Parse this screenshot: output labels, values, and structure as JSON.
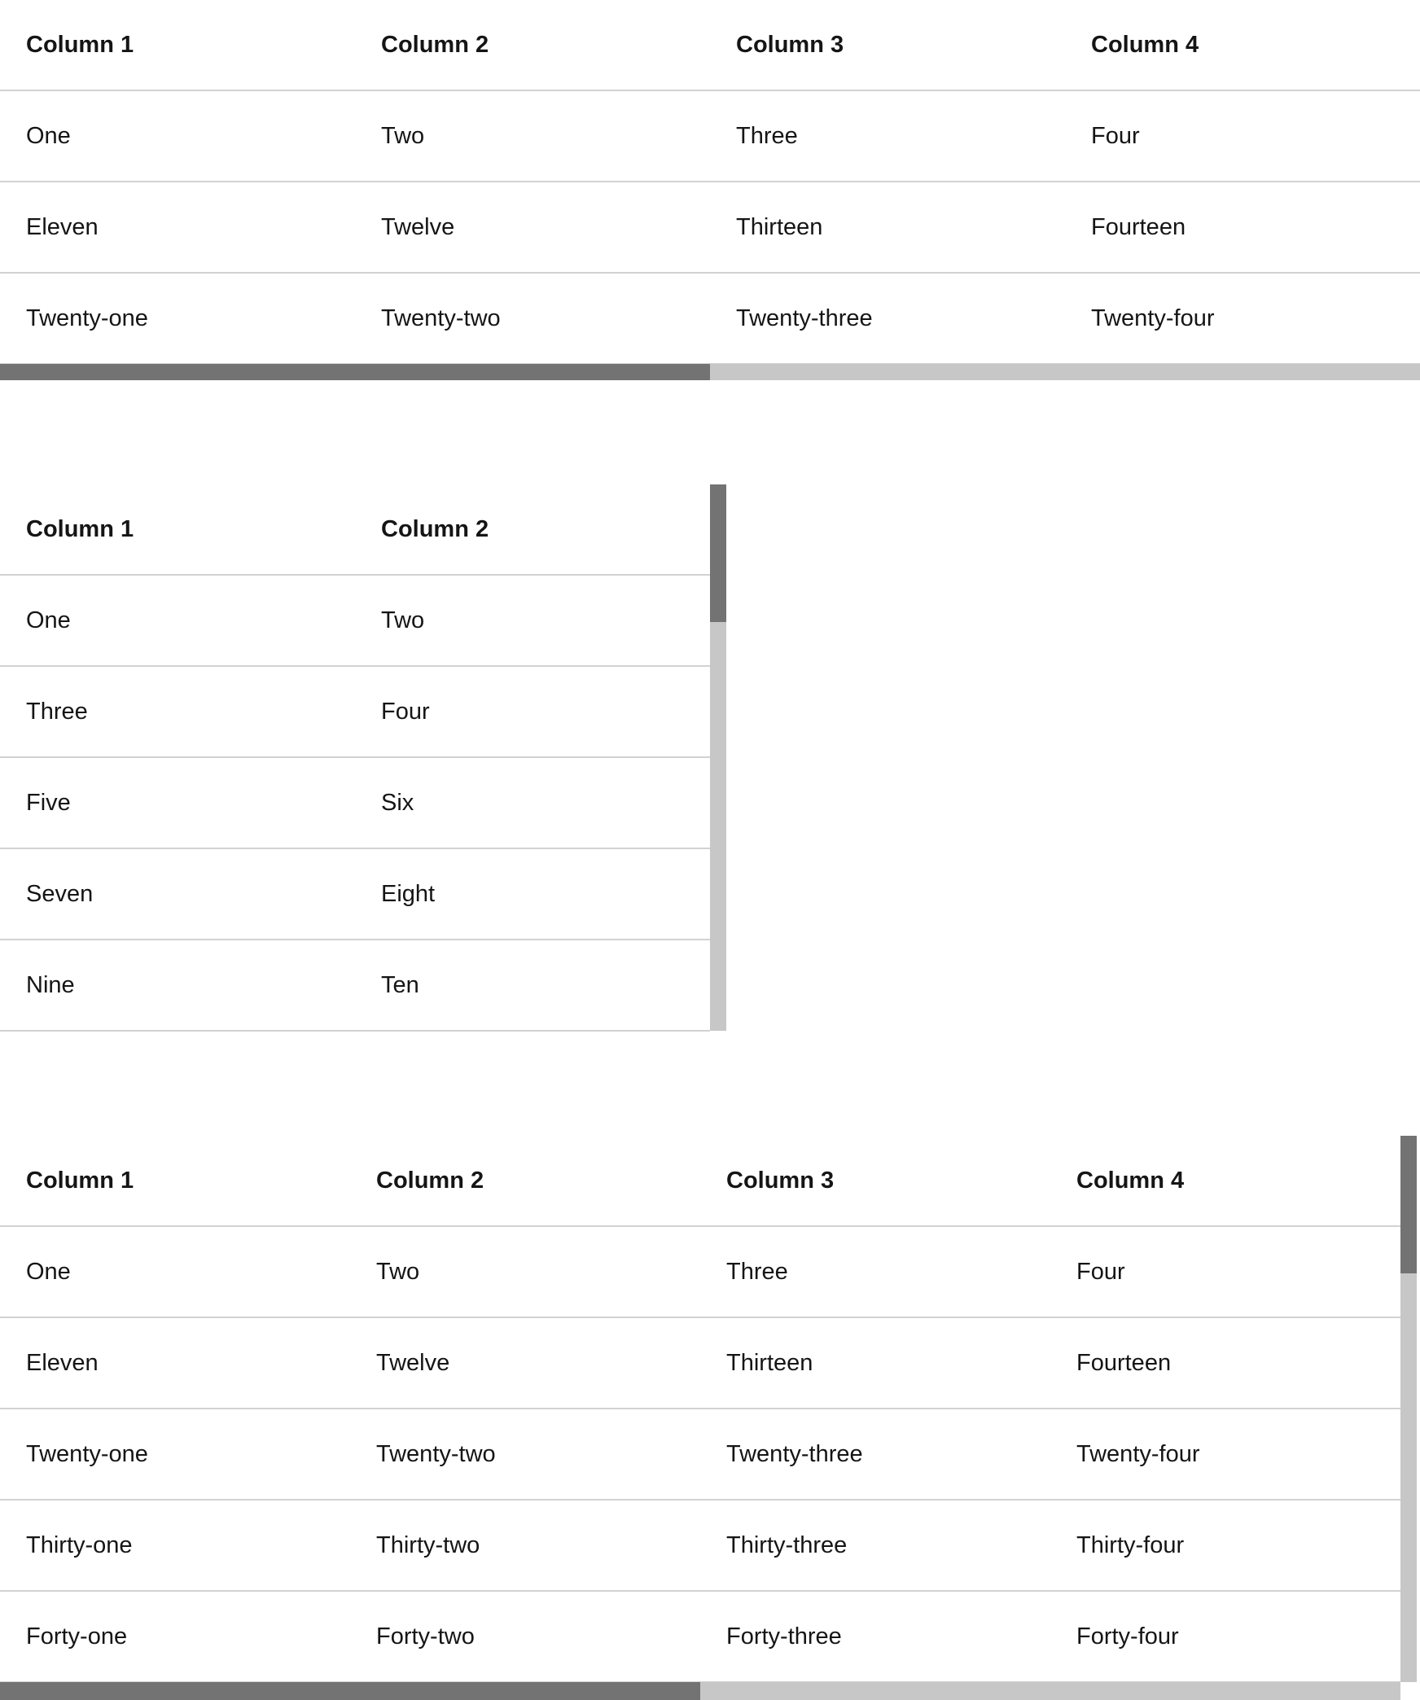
{
  "colors": {
    "text": "#151515",
    "border": "#d2d2d2",
    "scrollbar_thumb": "#737373",
    "scrollbar_track": "#c7c7c7"
  },
  "tables": [
    {
      "headers": [
        "Column 1",
        "Column 2",
        "Column 3",
        "Column 4"
      ],
      "rows": [
        [
          "One",
          "Two",
          "Three",
          "Four"
        ],
        [
          "Eleven",
          "Twelve",
          "Thirteen",
          "Fourteen"
        ],
        [
          "Twenty-one",
          "Twenty-two",
          "Twenty-three",
          "Twenty-four"
        ]
      ],
      "scrollbars": {
        "horizontal": true,
        "vertical": false
      }
    },
    {
      "headers": [
        "Column 1",
        "Column 2"
      ],
      "rows": [
        [
          "One",
          "Two"
        ],
        [
          "Three",
          "Four"
        ],
        [
          "Five",
          "Six"
        ],
        [
          "Seven",
          "Eight"
        ],
        [
          "Nine",
          "Ten"
        ]
      ],
      "scrollbars": {
        "horizontal": false,
        "vertical": true
      }
    },
    {
      "headers": [
        "Column 1",
        "Column 2",
        "Column 3",
        "Column 4"
      ],
      "rows": [
        [
          "One",
          "Two",
          "Three",
          "Four"
        ],
        [
          "Eleven",
          "Twelve",
          "Thirteen",
          "Fourteen"
        ],
        [
          "Twenty-one",
          "Twenty-two",
          "Twenty-three",
          "Twenty-four"
        ],
        [
          "Thirty-one",
          "Thirty-two",
          "Thirty-three",
          "Thirty-four"
        ],
        [
          "Forty-one",
          "Forty-two",
          "Forty-three",
          "Forty-four"
        ]
      ],
      "scrollbars": {
        "horizontal": true,
        "vertical": true
      }
    }
  ]
}
